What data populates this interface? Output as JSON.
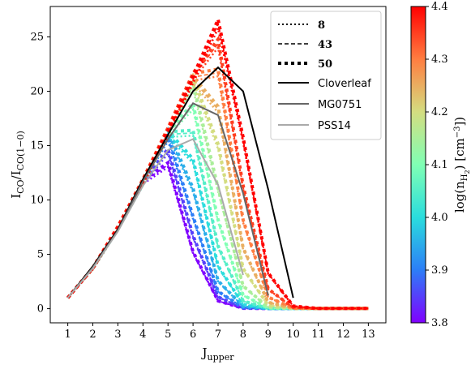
{
  "chart_data": {
    "type": "line",
    "xlabel": "J",
    "xlabel_sub": "upper",
    "ylabel": "I",
    "ylabel_sub_num": "CO",
    "ylabel_den": "I",
    "ylabel_sub_den": "CO(1−0)",
    "x_ticks": [
      1,
      2,
      3,
      4,
      5,
      6,
      7,
      8,
      9,
      10,
      11,
      12,
      13
    ],
    "y_ticks": [
      0,
      5,
      10,
      15,
      20,
      25
    ],
    "xlim": [
      0.3,
      13.7
    ],
    "ylim": [
      -1.3,
      27.8
    ],
    "colorbar": {
      "label": "log(n",
      "label_sub": "H",
      "label_sub2": "2",
      "label_unit": ") [cm",
      "label_exp": "−3",
      "label_end": "])",
      "range": [
        3.8,
        4.4
      ],
      "ticks": [
        "3.8",
        "3.9",
        "4.0",
        "4.1",
        "4.2",
        "4.3",
        "4.4"
      ],
      "colormap": "rainbow"
    },
    "legend": {
      "placement": "top-right",
      "entries": [
        {
          "label": "8",
          "style": "dotted-thin",
          "color": "#000000"
        },
        {
          "label": "43",
          "style": "dashed",
          "color": "#000000"
        },
        {
          "label": "50",
          "style": "dotted-thick",
          "color": "#000000"
        },
        {
          "label": "Cloverleaf",
          "style": "solid",
          "color": "#000000"
        },
        {
          "label": "MG0751",
          "style": "solid",
          "color": "#666666"
        },
        {
          "label": "PSS14",
          "style": "solid",
          "color": "#aaaaaa"
        }
      ]
    },
    "series": [
      {
        "name": "Cloverleaf",
        "color": "#000000",
        "x": [
          1,
          2,
          3,
          4,
          5,
          6,
          7,
          8,
          9,
          10
        ],
        "y": [
          1,
          3.9,
          7.3,
          11.9,
          16,
          20,
          22.2,
          20,
          11,
          1
        ]
      },
      {
        "name": "MG0751",
        "color": "#666666",
        "x": [
          1,
          2,
          3,
          4,
          5,
          6,
          7,
          8,
          9
        ],
        "y": [
          1,
          3.8,
          7.2,
          11.7,
          15.6,
          18.9,
          17.8,
          10.6,
          1.2
        ]
      },
      {
        "name": "PSS14",
        "color": "#aaaaaa",
        "x": [
          1,
          2,
          3,
          4,
          5,
          6,
          7,
          8
        ],
        "y": [
          1,
          3.7,
          7.1,
          11.3,
          14.6,
          15.6,
          11.4,
          3.1
        ]
      }
    ],
    "model_curves": {
      "x": [
        1,
        2,
        3,
        4,
        5,
        6,
        7,
        8,
        9,
        10,
        11,
        12,
        13
      ],
      "peak_positions": [
        4.6,
        4.75,
        4.9,
        5.1,
        5.3,
        5.5,
        5.7,
        5.9,
        6.15,
        6.35,
        6.55,
        6.75,
        7.0
      ],
      "log_n": [
        3.8,
        3.85,
        3.9,
        3.95,
        4.0,
        4.05,
        4.1,
        4.15,
        4.2,
        4.25,
        4.3,
        4.35,
        4.4
      ],
      "peak_values": [
        14.6,
        15.2,
        16.0,
        16.9,
        17.8,
        18.7,
        19.8,
        20.9,
        22.1,
        23.2,
        24.5,
        25.6,
        26.6
      ]
    }
  }
}
